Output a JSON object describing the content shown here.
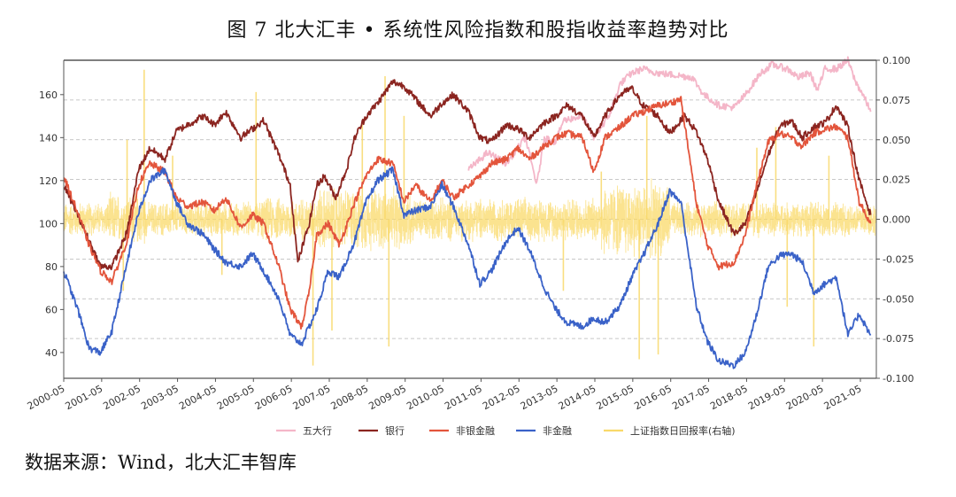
{
  "title": "图 7  北大汇丰 • 系统性风险指数和股指收益率趋势对比",
  "source": "数据来源：Wind，北大汇丰智库",
  "chart_data": {
    "type": "line",
    "title": "图 7  北大汇丰 • 系统性风险指数和股指收益率趋势对比",
    "xlabel": "",
    "ylabel": "",
    "x_start": 2000.33,
    "x_end": 2021.75,
    "x_ticks": [
      "2000-05",
      "2001-05",
      "2002-05",
      "2003-05",
      "2004-05",
      "2005-05",
      "2006-05",
      "2007-05",
      "2008-05",
      "2009-05",
      "2010-05",
      "2011-05",
      "2012-05",
      "2013-05",
      "2014-05",
      "2015-05",
      "2016-05",
      "2017-05",
      "2018-05",
      "2019-05",
      "2020-05",
      "2021-05"
    ],
    "y_left": {
      "range": [
        28,
        176
      ],
      "ticks": [
        "40",
        "60",
        "80",
        "100",
        "120",
        "140",
        "160"
      ]
    },
    "y_right": {
      "range": [
        -0.1,
        0.1
      ],
      "ticks": [
        "-0.100",
        "-0.075",
        "-0.050",
        "-0.025",
        "0.000",
        "0.025",
        "0.050",
        "0.075",
        "0.100"
      ],
      "label": "右轴"
    },
    "grid": true,
    "legend_position": "bottom",
    "series": [
      {
        "name": "五大行",
        "color": "#f4b6c8",
        "axis": "left",
        "points": [
          [
            2011.0,
            125
          ],
          [
            2011.5,
            133
          ],
          [
            2012.0,
            128
          ],
          [
            2012.5,
            140
          ],
          [
            2012.8,
            118
          ],
          [
            2013.0,
            140
          ],
          [
            2013.3,
            138
          ],
          [
            2013.5,
            148
          ],
          [
            2014.0,
            150
          ],
          [
            2014.3,
            140
          ],
          [
            2014.7,
            150
          ],
          [
            2015.0,
            165
          ],
          [
            2015.3,
            170
          ],
          [
            2015.6,
            172
          ],
          [
            2016.0,
            170
          ],
          [
            2016.5,
            169
          ],
          [
            2016.9,
            168
          ],
          [
            2017.2,
            160
          ],
          [
            2017.6,
            155
          ],
          [
            2018.0,
            154
          ],
          [
            2018.3,
            160
          ],
          [
            2018.7,
            170
          ],
          [
            2019.0,
            174
          ],
          [
            2019.4,
            172
          ],
          [
            2019.7,
            168
          ],
          [
            2020.0,
            170
          ],
          [
            2020.2,
            162
          ],
          [
            2020.4,
            172
          ],
          [
            2020.7,
            172
          ],
          [
            2021.0,
            176
          ],
          [
            2021.2,
            166
          ],
          [
            2021.4,
            160
          ],
          [
            2021.6,
            152
          ]
        ]
      },
      {
        "name": "银行",
        "color": "#8b2520",
        "axis": "left",
        "points": [
          [
            2000.33,
            118
          ],
          [
            2000.7,
            104
          ],
          [
            2001.0,
            92
          ],
          [
            2001.3,
            80
          ],
          [
            2001.6,
            80
          ],
          [
            2002.0,
            96
          ],
          [
            2002.3,
            125
          ],
          [
            2002.6,
            135
          ],
          [
            2003.0,
            130
          ],
          [
            2003.3,
            143
          ],
          [
            2003.6,
            146
          ],
          [
            2004.0,
            150
          ],
          [
            2004.3,
            146
          ],
          [
            2004.6,
            152
          ],
          [
            2005.0,
            140
          ],
          [
            2005.3,
            144
          ],
          [
            2005.6,
            148
          ],
          [
            2006.0,
            132
          ],
          [
            2006.3,
            118
          ],
          [
            2006.5,
            82
          ],
          [
            2006.8,
            100
          ],
          [
            2007.0,
            118
          ],
          [
            2007.2,
            122
          ],
          [
            2007.5,
            112
          ],
          [
            2007.8,
            126
          ],
          [
            2008.0,
            140
          ],
          [
            2008.3,
            150
          ],
          [
            2008.6,
            156
          ],
          [
            2009.0,
            166
          ],
          [
            2009.3,
            164
          ],
          [
            2009.6,
            158
          ],
          [
            2010.0,
            150
          ],
          [
            2010.3,
            156
          ],
          [
            2010.6,
            160
          ],
          [
            2011.0,
            152
          ],
          [
            2011.3,
            140
          ],
          [
            2011.6,
            138
          ],
          [
            2012.0,
            146
          ],
          [
            2012.3,
            144
          ],
          [
            2012.6,
            140
          ],
          [
            2013.0,
            147
          ],
          [
            2013.3,
            150
          ],
          [
            2013.6,
            155
          ],
          [
            2014.0,
            150
          ],
          [
            2014.3,
            140
          ],
          [
            2014.6,
            150
          ],
          [
            2015.0,
            160
          ],
          [
            2015.3,
            163
          ],
          [
            2015.6,
            155
          ],
          [
            2016.0,
            150
          ],
          [
            2016.3,
            142
          ],
          [
            2016.7,
            150
          ],
          [
            2017.0,
            143
          ],
          [
            2017.3,
            130
          ],
          [
            2017.6,
            110
          ],
          [
            2018.0,
            95
          ],
          [
            2018.3,
            100
          ],
          [
            2018.6,
            115
          ],
          [
            2018.9,
            132
          ],
          [
            2019.2,
            145
          ],
          [
            2019.5,
            148
          ],
          [
            2019.8,
            140
          ],
          [
            2020.1,
            145
          ],
          [
            2020.4,
            147
          ],
          [
            2020.7,
            155
          ],
          [
            2021.0,
            145
          ],
          [
            2021.3,
            120
          ],
          [
            2021.6,
            104
          ]
        ]
      },
      {
        "name": "非银金融",
        "color": "#e3553c",
        "axis": "left",
        "points": [
          [
            2000.33,
            122
          ],
          [
            2000.7,
            105
          ],
          [
            2001.0,
            90
          ],
          [
            2001.3,
            78
          ],
          [
            2001.6,
            73
          ],
          [
            2002.0,
            92
          ],
          [
            2002.3,
            118
          ],
          [
            2002.6,
            128
          ],
          [
            2003.0,
            124
          ],
          [
            2003.3,
            112
          ],
          [
            2003.6,
            108
          ],
          [
            2004.0,
            110
          ],
          [
            2004.3,
            106
          ],
          [
            2004.6,
            112
          ],
          [
            2005.0,
            98
          ],
          [
            2005.3,
            104
          ],
          [
            2005.6,
            100
          ],
          [
            2006.0,
            80
          ],
          [
            2006.3,
            60
          ],
          [
            2006.6,
            52
          ],
          [
            2006.8,
            68
          ],
          [
            2007.0,
            95
          ],
          [
            2007.3,
            100
          ],
          [
            2007.6,
            90
          ],
          [
            2008.0,
            110
          ],
          [
            2008.3,
            122
          ],
          [
            2008.6,
            130
          ],
          [
            2009.0,
            128
          ],
          [
            2009.3,
            110
          ],
          [
            2009.6,
            118
          ],
          [
            2010.0,
            110
          ],
          [
            2010.3,
            120
          ],
          [
            2010.6,
            112
          ],
          [
            2011.0,
            118
          ],
          [
            2011.3,
            122
          ],
          [
            2011.6,
            128
          ],
          [
            2012.0,
            130
          ],
          [
            2012.3,
            135
          ],
          [
            2012.6,
            130
          ],
          [
            2013.0,
            136
          ],
          [
            2013.3,
            140
          ],
          [
            2013.6,
            142
          ],
          [
            2014.0,
            140
          ],
          [
            2014.3,
            124
          ],
          [
            2014.6,
            140
          ],
          [
            2015.0,
            145
          ],
          [
            2015.3,
            150
          ],
          [
            2015.6,
            152
          ],
          [
            2016.0,
            155
          ],
          [
            2016.3,
            156
          ],
          [
            2016.6,
            158
          ],
          [
            2017.0,
            110
          ],
          [
            2017.3,
            90
          ],
          [
            2017.6,
            80
          ],
          [
            2018.0,
            82
          ],
          [
            2018.3,
            95
          ],
          [
            2018.6,
            118
          ],
          [
            2018.9,
            138
          ],
          [
            2019.2,
            142
          ],
          [
            2019.5,
            140
          ],
          [
            2019.8,
            136
          ],
          [
            2020.1,
            142
          ],
          [
            2020.4,
            144
          ],
          [
            2020.7,
            145
          ],
          [
            2021.0,
            140
          ],
          [
            2021.3,
            110
          ],
          [
            2021.6,
            100
          ]
        ]
      },
      {
        "name": "非金融",
        "color": "#3a62c8",
        "axis": "left",
        "points": [
          [
            2000.33,
            78
          ],
          [
            2000.7,
            60
          ],
          [
            2001.0,
            42
          ],
          [
            2001.3,
            40
          ],
          [
            2001.6,
            50
          ],
          [
            2002.0,
            82
          ],
          [
            2002.3,
            105
          ],
          [
            2002.6,
            120
          ],
          [
            2003.0,
            125
          ],
          [
            2003.3,
            110
          ],
          [
            2003.6,
            100
          ],
          [
            2004.0,
            95
          ],
          [
            2004.3,
            88
          ],
          [
            2004.6,
            82
          ],
          [
            2005.0,
            80
          ],
          [
            2005.3,
            86
          ],
          [
            2005.6,
            78
          ],
          [
            2006.0,
            65
          ],
          [
            2006.3,
            48
          ],
          [
            2006.6,
            44
          ],
          [
            2006.8,
            52
          ],
          [
            2007.0,
            60
          ],
          [
            2007.3,
            78
          ],
          [
            2007.6,
            75
          ],
          [
            2008.0,
            92
          ],
          [
            2008.3,
            110
          ],
          [
            2008.6,
            120
          ],
          [
            2009.0,
            125
          ],
          [
            2009.3,
            104
          ],
          [
            2009.6,
            106
          ],
          [
            2010.0,
            108
          ],
          [
            2010.3,
            118
          ],
          [
            2010.6,
            108
          ],
          [
            2011.0,
            90
          ],
          [
            2011.3,
            72
          ],
          [
            2011.6,
            78
          ],
          [
            2012.0,
            92
          ],
          [
            2012.3,
            98
          ],
          [
            2012.6,
            88
          ],
          [
            2013.0,
            70
          ],
          [
            2013.3,
            60
          ],
          [
            2013.6,
            54
          ],
          [
            2014.0,
            52
          ],
          [
            2014.3,
            56
          ],
          [
            2014.6,
            54
          ],
          [
            2015.0,
            62
          ],
          [
            2015.3,
            75
          ],
          [
            2015.6,
            85
          ],
          [
            2016.0,
            100
          ],
          [
            2016.3,
            115
          ],
          [
            2016.6,
            110
          ],
          [
            2017.0,
            62
          ],
          [
            2017.3,
            45
          ],
          [
            2017.6,
            36
          ],
          [
            2018.0,
            34
          ],
          [
            2018.3,
            40
          ],
          [
            2018.6,
            58
          ],
          [
            2018.9,
            80
          ],
          [
            2019.2,
            85
          ],
          [
            2019.5,
            86
          ],
          [
            2019.8,
            82
          ],
          [
            2020.1,
            68
          ],
          [
            2020.4,
            72
          ],
          [
            2020.7,
            75
          ],
          [
            2021.0,
            48
          ],
          [
            2021.3,
            58
          ],
          [
            2021.6,
            48
          ]
        ]
      },
      {
        "name": "上证指数日回报率(右轴)",
        "color": "#f9d96a",
        "axis": "right",
        "type": "bar-daily",
        "segments": [
          {
            "from": 2000.33,
            "to": 2001.5,
            "amp": 0.012
          },
          {
            "from": 2001.5,
            "to": 2002.5,
            "amp": 0.018,
            "spikes": [
              [
                2002.45,
                0.094
              ],
              [
                2001.9,
                -0.045
              ],
              [
                2002.0,
                0.05
              ]
            ]
          },
          {
            "from": 2002.5,
            "to": 2005.5,
            "amp": 0.012,
            "spikes": [
              [
                2003.2,
                0.04
              ],
              [
                2005.4,
                0.08
              ],
              [
                2004.5,
                -0.035
              ]
            ]
          },
          {
            "from": 2005.5,
            "to": 2007.0,
            "amp": 0.015,
            "spikes": [
              [
                2006.9,
                -0.092
              ]
            ]
          },
          {
            "from": 2007.0,
            "to": 2009.5,
            "amp": 0.022,
            "spikes": [
              [
                2008.2,
                0.06
              ],
              [
                2008.8,
                0.09
              ],
              [
                2008.9,
                -0.08
              ],
              [
                2009.3,
                0.065
              ],
              [
                2007.4,
                -0.07
              ]
            ]
          },
          {
            "from": 2009.5,
            "to": 2014.5,
            "amp": 0.015,
            "spikes": [
              [
                2013.5,
                -0.045
              ],
              [
                2014.5,
                0.03
              ]
            ]
          },
          {
            "from": 2014.5,
            "to": 2016.3,
            "amp": 0.026,
            "spikes": [
              [
                2015.5,
                -0.088
              ],
              [
                2015.7,
                0.065
              ],
              [
                2016.0,
                -0.085
              ]
            ]
          },
          {
            "from": 2016.3,
            "to": 2021.75,
            "amp": 0.012,
            "spikes": [
              [
                2018.6,
                0.045
              ],
              [
                2019.1,
                0.058
              ],
              [
                2019.4,
                -0.055
              ],
              [
                2020.1,
                -0.08
              ],
              [
                2020.5,
                0.04
              ]
            ]
          }
        ]
      }
    ]
  }
}
